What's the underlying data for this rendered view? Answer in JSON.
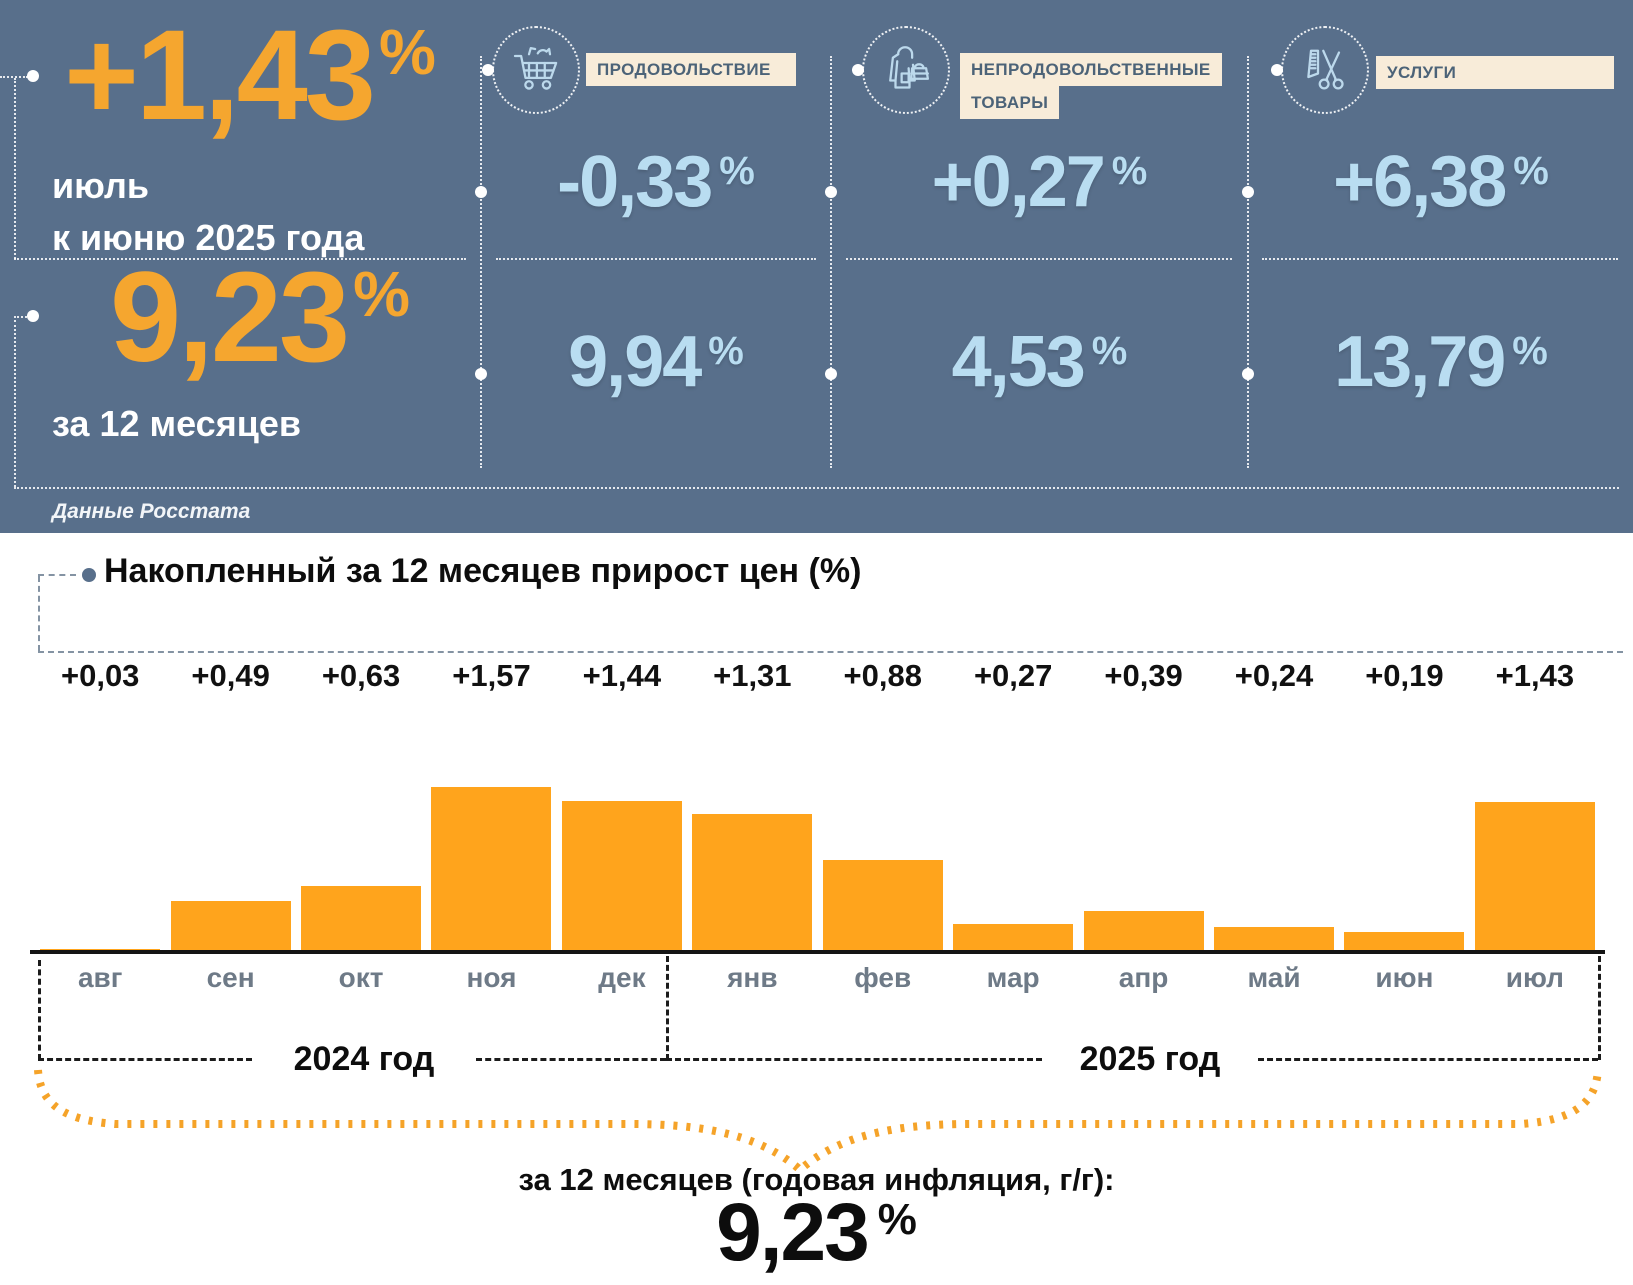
{
  "percent_sign": "%",
  "colors": {
    "hero_background": "#586F8B",
    "accent_orange": "#F5A62F",
    "bar_orange": "#FFA41C",
    "value_light_blue": "#B9DDF1",
    "badge_cream": "#F8ECD9"
  },
  "header": {
    "main": {
      "monthly_value": "+1,43",
      "monthly_caption_line1": "июль",
      "monthly_caption_line2": "к июню 2025 года",
      "annual_value": "9,23",
      "annual_caption": "за 12 месяцев",
      "source": "Данные Росстата"
    },
    "categories": [
      {
        "icon": "cart-icon",
        "label_line1": "ПРОДОВОЛЬСТВИЕ",
        "label_line2": "",
        "monthly": "-0,33",
        "annual": "9,94"
      },
      {
        "icon": "clothing-bag-icon",
        "label_line1": "НЕПРОДОВОЛЬСТВЕННЫЕ",
        "label_line2": "ТОВАРЫ",
        "monthly": "+0,27",
        "annual": "4,53"
      },
      {
        "icon": "scissors-comb-icon",
        "label_line1": "УСЛУГИ",
        "label_line2": "",
        "monthly": "+6,38",
        "annual": "13,79"
      }
    ]
  },
  "chart_data": {
    "type": "bar",
    "title": "Накопленный за 12 месяцев прирост цен (%)",
    "categories": [
      "авг",
      "сен",
      "окт",
      "ноя",
      "дек",
      "янв",
      "фев",
      "мар",
      "апр",
      "май",
      "июн",
      "июл"
    ],
    "values": [
      0.03,
      0.49,
      0.63,
      1.57,
      1.44,
      1.31,
      0.88,
      0.27,
      0.39,
      0.24,
      0.19,
      1.43
    ],
    "labels": [
      "+0,03",
      "+0,49",
      "+0,63",
      "+1,57",
      "+1,44",
      "+1,31",
      "+0,88",
      "+0,27",
      "+0,39",
      "+0,24",
      "+0,19",
      "+1,43"
    ],
    "xlabel": "",
    "ylabel": "",
    "ylim": [
      0,
      1.6
    ],
    "grid": false,
    "legend": "none",
    "year_groups": [
      {
        "label": "2024 год",
        "months": 5
      },
      {
        "label": "2025 год",
        "months": 7
      }
    ]
  },
  "footer": {
    "annotation": "за 12 месяцев (годовая инфляция, г/г):",
    "total_value": "9,23"
  }
}
